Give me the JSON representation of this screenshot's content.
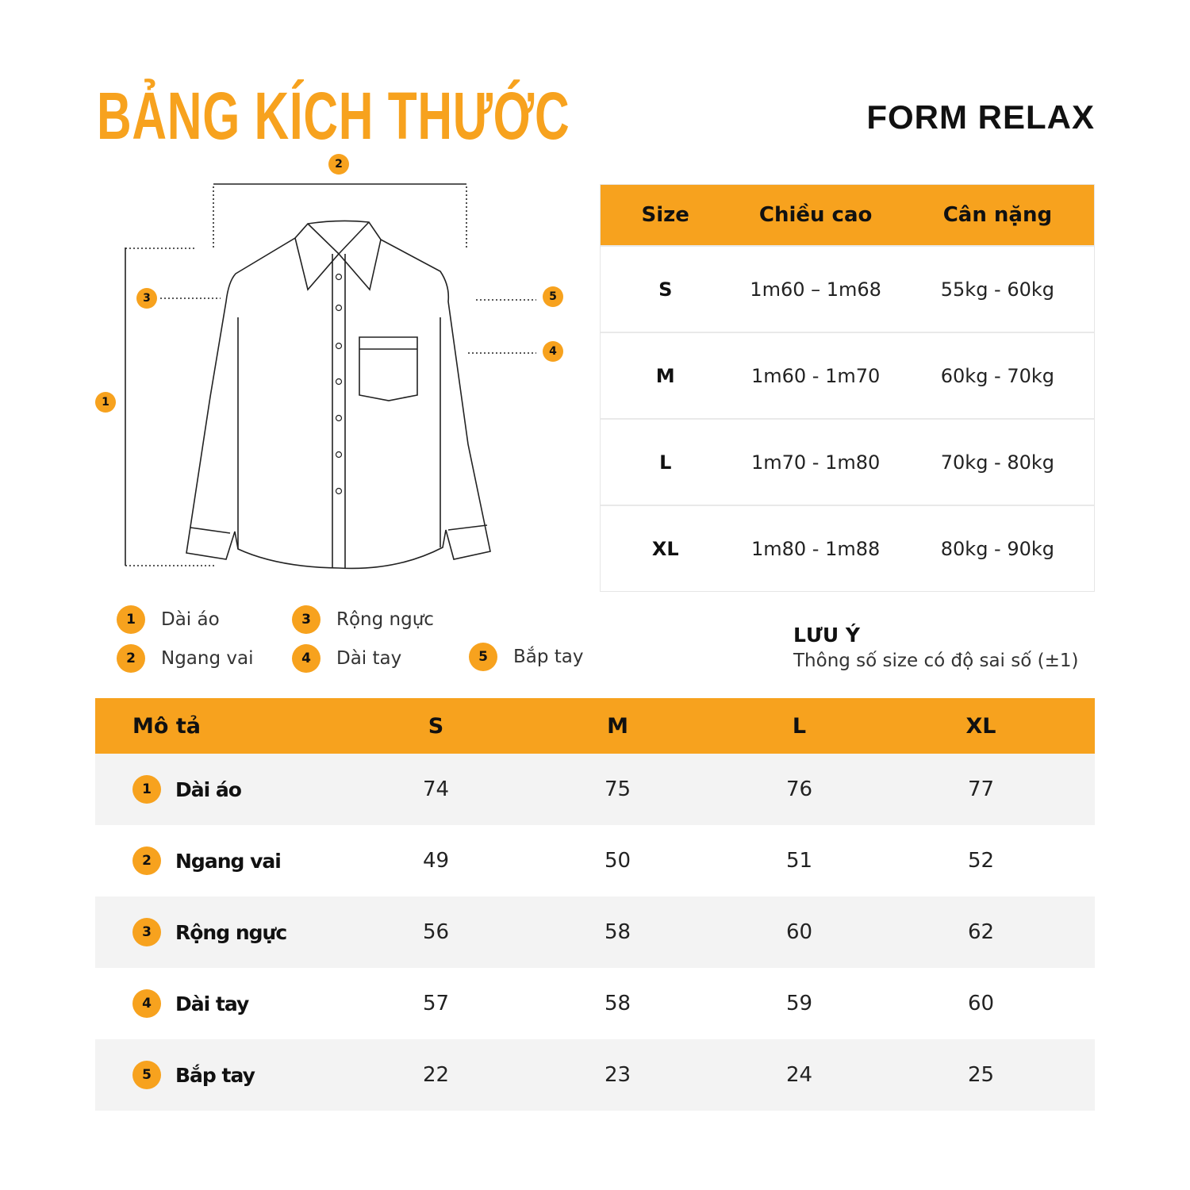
{
  "title": "BẢNG KÍCH THƯỚC",
  "form": "FORM RELAX",
  "accent_color": "#F7A21E",
  "diagram_markers": [
    "1",
    "2",
    "3",
    "4",
    "5"
  ],
  "size_table": {
    "headers": [
      "Size",
      "Chiều cao",
      "Cân nặng"
    ],
    "rows": [
      {
        "size": "S",
        "height": "1m60 – 1m68",
        "weight": "55kg - 60kg"
      },
      {
        "size": "M",
        "height": "1m60 - 1m70",
        "weight": "60kg - 70kg"
      },
      {
        "size": "L",
        "height": "1m70 - 1m80",
        "weight": "70kg - 80kg"
      },
      {
        "size": "XL",
        "height": "1m80 - 1m88",
        "weight": "80kg - 90kg"
      }
    ]
  },
  "legend": [
    {
      "num": "1",
      "label": "Dài áo"
    },
    {
      "num": "2",
      "label": "Ngang vai"
    },
    {
      "num": "3",
      "label": "Rộng ngực"
    },
    {
      "num": "4",
      "label": "Dài tay"
    },
    {
      "num": "5",
      "label": "Bắp tay"
    }
  ],
  "note": {
    "title": "LƯU Ý",
    "text": "Thông số size có độ sai số (±1)"
  },
  "measure_table": {
    "headers": [
      "Mô tả",
      "S",
      "M",
      "L",
      "XL"
    ],
    "rows": [
      {
        "num": "1",
        "label": "Dài áo",
        "values": [
          "74",
          "75",
          "76",
          "77"
        ]
      },
      {
        "num": "2",
        "label": "Ngang vai",
        "values": [
          "49",
          "50",
          "51",
          "52"
        ]
      },
      {
        "num": "3",
        "label": "Rộng ngực",
        "values": [
          "56",
          "58",
          "60",
          "62"
        ]
      },
      {
        "num": "4",
        "label": "Dài tay",
        "values": [
          "57",
          "58",
          "59",
          "60"
        ]
      },
      {
        "num": "5",
        "label": "Bắp tay",
        "values": [
          "22",
          "23",
          "24",
          "25"
        ]
      }
    ]
  }
}
